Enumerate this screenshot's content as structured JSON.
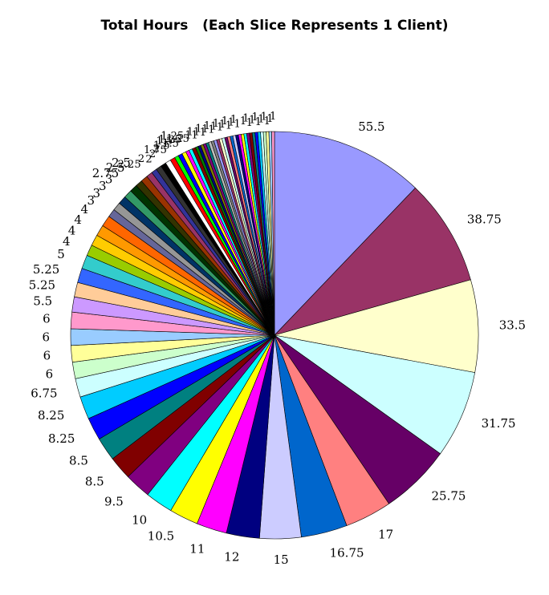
{
  "chart_data": {
    "type": "pie",
    "title": "Total Hours   (Each Slice Represents 1 Client)",
    "values": [
      55.5,
      38.75,
      33.5,
      31.75,
      25.75,
      17,
      16.75,
      15,
      12,
      11,
      10.5,
      10,
      9.5,
      8.5,
      8.5,
      8.25,
      8.25,
      6.75,
      6,
      6,
      6,
      6,
      5.5,
      5.25,
      5.25,
      5,
      4,
      4,
      4,
      4,
      3,
      3,
      3,
      3,
      2.75,
      2.5,
      2.5,
      2.25,
      2,
      2,
      2,
      2,
      1.75,
      1.5,
      1.5,
      1.5,
      1.25,
      1.25,
      1.25,
      1,
      1,
      1,
      1,
      1,
      1,
      1,
      1,
      1,
      1,
      1,
      1,
      1,
      1,
      1,
      1,
      1,
      1,
      1,
      1,
      1,
      1,
      1,
      1,
      1,
      1,
      1,
      1,
      1
    ],
    "labels": [
      "55.5",
      "38.75",
      "33.5",
      "31.75",
      "25.75",
      "17",
      "16.75",
      "15",
      "12",
      "11",
      "10.5",
      "10",
      "9.5",
      "8.5",
      "8.5",
      "8.25",
      "8.25",
      "6.75",
      "6",
      "6",
      "6",
      "6",
      "5.5",
      "5.25",
      "5.25",
      "5",
      "4",
      "4",
      "4",
      "4",
      "3",
      "3",
      "3",
      "3",
      "2.75",
      "2.5",
      "2.5",
      "2.25",
      "2",
      "2",
      "2",
      "2",
      "1.75",
      "1.5",
      "1.5",
      "1.5",
      "1.25",
      "1.25",
      "1.25",
      "1",
      "1",
      "1",
      "1",
      "1",
      "1",
      "1",
      "1",
      "1",
      "1",
      "1",
      "1",
      "1",
      "1",
      "1",
      "1",
      "1",
      "1",
      "1",
      "1",
      "1",
      "1",
      "1",
      "1",
      "1",
      "1",
      "1",
      "1",
      "1"
    ],
    "colors": [
      "#9999ff",
      "#993366",
      "#ffffcc",
      "#ccffff",
      "#660066",
      "#ff8080",
      "#0066cc",
      "#ccccff",
      "#000080",
      "#ff00ff",
      "#ffff00",
      "#00ffff",
      "#800080",
      "#800000",
      "#008080",
      "#0000ff",
      "#00ccff",
      "#ccffff",
      "#ccffcc",
      "#ffff99",
      "#99ccff",
      "#ff99cc",
      "#cc99ff",
      "#ffcc99",
      "#3366ff",
      "#33cccc",
      "#99cc00",
      "#ffcc00",
      "#ff9900",
      "#ff6600",
      "#666699",
      "#969696",
      "#003366",
      "#339966",
      "#003300",
      "#333300",
      "#993300",
      "#993366",
      "#333399",
      "#333333",
      "#000000",
      "#ffffff",
      "#ff0000",
      "#00ff00",
      "#0000ff",
      "#ffff00",
      "#ff00ff",
      "#00ffff",
      "#800000",
      "#008000",
      "#000080",
      "#808000",
      "#800080",
      "#008080",
      "#c0c0c0",
      "#808080",
      "#9999ff",
      "#993366",
      "#ffffcc",
      "#ccffff",
      "#660066",
      "#ff8080",
      "#0066cc",
      "#ccccff",
      "#000080",
      "#ff00ff",
      "#ffff00",
      "#00ffff",
      "#800080",
      "#800000",
      "#008080",
      "#0000ff",
      "#00ccff",
      "#ccffff",
      "#ccffcc",
      "#ffff99",
      "#99ccff",
      "#ff99cc"
    ],
    "start_angle": "12 o'clock",
    "direction": "clockwise",
    "legend": "none"
  }
}
